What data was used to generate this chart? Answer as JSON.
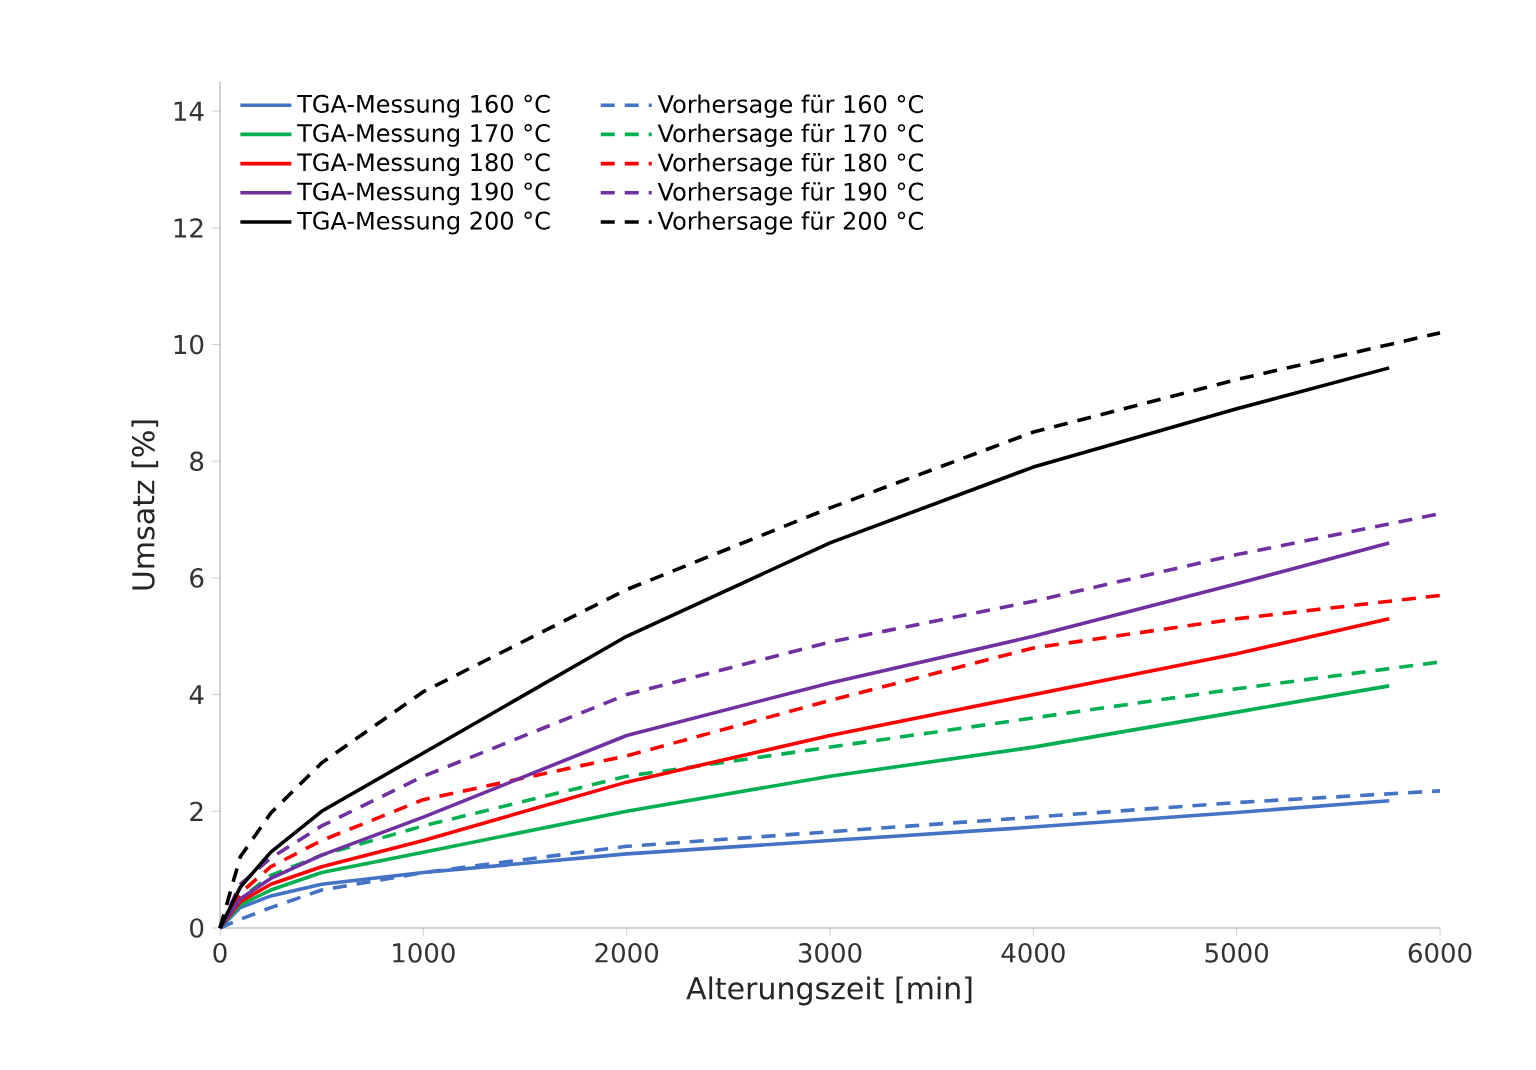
{
  "chart_data": {
    "type": "line",
    "xlabel": "Alterungszeit [min]",
    "ylabel": "Umsatz [%]",
    "xlim": [
      0,
      6000
    ],
    "ylim": [
      0,
      14.5
    ],
    "xticks": [
      0,
      1000,
      2000,
      3000,
      4000,
      5000,
      6000
    ],
    "yticks": [
      0,
      2,
      4,
      6,
      8,
      10,
      12,
      14
    ],
    "grid": false,
    "legend": "top",
    "marker": "none",
    "series": [
      {
        "name": "TGA-Messung 160 °C",
        "color": "#4472c4",
        "line_style": "solid",
        "x": [
          0,
          100,
          250,
          500,
          1000,
          2000,
          3000,
          4000,
          5000,
          5750
        ],
        "values": [
          0,
          0.35,
          0.55,
          0.75,
          0.95,
          1.27,
          1.5,
          1.73,
          1.98,
          2.18
        ]
      },
      {
        "name": "Vorhersage für 160 °C",
        "color": "#4472c4",
        "line_style": "dashed",
        "x": [
          0,
          100,
          250,
          500,
          1000,
          2000,
          3000,
          4000,
          5000,
          6000
        ],
        "values": [
          0,
          0.15,
          0.35,
          0.65,
          0.95,
          1.4,
          1.65,
          1.9,
          2.15,
          2.35
        ]
      },
      {
        "name": "TGA-Messung 170 °C",
        "color": "#00b050",
        "line_style": "solid",
        "x": [
          0,
          100,
          250,
          500,
          1000,
          2000,
          3000,
          4000,
          5000,
          5750
        ],
        "values": [
          0,
          0.4,
          0.65,
          0.95,
          1.3,
          2.0,
          2.6,
          3.1,
          3.7,
          4.15
        ]
      },
      {
        "name": "Vorhersage für 170 °C",
        "color": "#00b050",
        "line_style": "dashed",
        "x": [
          0,
          100,
          250,
          500,
          1000,
          2000,
          3000,
          4000,
          5000,
          6000
        ],
        "values": [
          0,
          0.5,
          0.9,
          1.25,
          1.75,
          2.6,
          3.1,
          3.6,
          4.1,
          4.56
        ]
      },
      {
        "name": "TGA-Messung 180 °C",
        "color": "#ff0000",
        "line_style": "solid",
        "x": [
          0,
          100,
          250,
          500,
          1000,
          2000,
          3000,
          4000,
          5000,
          5750
        ],
        "values": [
          0,
          0.45,
          0.75,
          1.05,
          1.5,
          2.5,
          3.3,
          4.0,
          4.7,
          5.3
        ]
      },
      {
        "name": "Vorhersage für 180 °C",
        "color": "#ff0000",
        "line_style": "dashed",
        "x": [
          0,
          100,
          250,
          500,
          1000,
          2000,
          3000,
          4000,
          5000,
          6000
        ],
        "values": [
          0,
          0.6,
          1.05,
          1.5,
          2.2,
          2.95,
          3.9,
          4.8,
          5.3,
          5.7
        ]
      },
      {
        "name": "TGA-Messung 190 °C",
        "color": "#7030a0",
        "line_style": "solid",
        "x": [
          0,
          100,
          250,
          500,
          1000,
          2000,
          3000,
          4000,
          5000,
          5750
        ],
        "values": [
          0,
          0.5,
          0.85,
          1.25,
          1.9,
          3.3,
          4.2,
          5.0,
          5.9,
          6.6
        ]
      },
      {
        "name": "Vorhersage für 190 °C",
        "color": "#7030a0",
        "line_style": "dashed",
        "x": [
          0,
          100,
          250,
          500,
          1000,
          2000,
          3000,
          4000,
          5000,
          6000
        ],
        "values": [
          0,
          0.75,
          1.2,
          1.75,
          2.6,
          4.0,
          4.9,
          5.6,
          6.4,
          7.1
        ]
      },
      {
        "name": "TGA-Messung 200 °C",
        "color": "#000000",
        "line_style": "solid",
        "x": [
          0,
          100,
          250,
          500,
          1000,
          2000,
          3000,
          4000,
          5000,
          5750
        ],
        "values": [
          0,
          0.7,
          1.3,
          2.0,
          3.0,
          5.0,
          6.6,
          7.9,
          8.9,
          9.6
        ]
      },
      {
        "name": "Vorhersage für 200 °C",
        "color": "#000000",
        "line_style": "dashed",
        "x": [
          0,
          100,
          250,
          500,
          1000,
          2000,
          3000,
          4000,
          5000,
          6000
        ],
        "values": [
          0,
          1.22,
          1.97,
          2.83,
          4.05,
          5.8,
          7.2,
          8.5,
          9.4,
          10.2
        ]
      }
    ]
  }
}
